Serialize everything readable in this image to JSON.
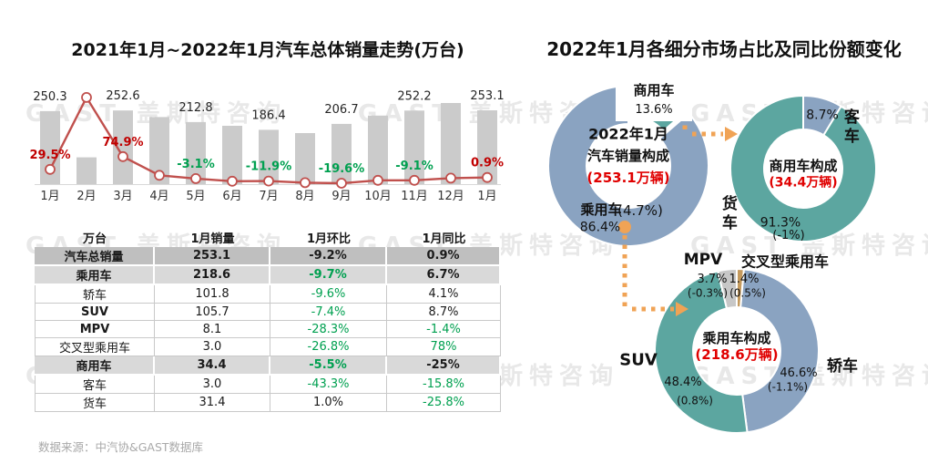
{
  "colors": {
    "bar": "#CBCBCB",
    "line": "#C0504D",
    "pct_red": "#C00000",
    "green": "#00A050",
    "black": "#1a1a1a",
    "teal": "#5CA6A0",
    "blue": "#8AA3C1",
    "tan": "#C49A5E",
    "gray": "#C7C7C7",
    "orange": "#F0A355",
    "center_red": "#E00000",
    "watermark": "#E8E8E8",
    "table_total_bg": "#BFBFBF",
    "table_group_bg": "#D9D9D9"
  },
  "watermark": {
    "text": "GAST 盖斯特咨询"
  },
  "left": {
    "title": "2021年1月~2022年1月汽车总体销量走势(万台)",
    "source": "数据来源：中汽协&GAST数据库"
  },
  "right": {
    "title": "2022年1月各细分市场占比及同比份额变化"
  },
  "chart_data": [
    {
      "id": "total-sales-trend",
      "type": "bar",
      "title": "2021年1月~2022年1月汽车总体销量走势(万台)",
      "ylabel": "万台",
      "ylim": [
        0,
        290
      ],
      "categories": [
        "1月",
        "2月",
        "3月",
        "4月",
        "5月",
        "6月",
        "7月",
        "8月",
        "9月",
        "10月",
        "11月",
        "12月",
        "1月"
      ],
      "series": [
        {
          "name": "销量(万台)",
          "type": "bar",
          "values": [
            250.3,
            92,
            252.6,
            230,
            212.8,
            200,
            186.4,
            175,
            206.7,
            235,
            252.2,
            278,
            253.1
          ],
          "labels": [
            "250.3",
            null,
            "252.6",
            null,
            "212.8",
            null,
            "186.4",
            null,
            "206.7",
            null,
            "252.2",
            null,
            "253.1"
          ]
        },
        {
          "name": "同比",
          "type": "line",
          "values": [
            29.5,
            285,
            74.9,
            8.6,
            -3.1,
            -12.4,
            -11.9,
            -17.8,
            -19.6,
            -9.4,
            -9.1,
            -1.6,
            0.9
          ],
          "labels": [
            "29.5%",
            null,
            "74.9%",
            null,
            "-3.1%",
            null,
            "-11.9%",
            null,
            "-19.6%",
            null,
            "-9.1%",
            null,
            "0.9%"
          ],
          "label_colors": [
            "red",
            null,
            "red",
            null,
            "green",
            null,
            "green",
            null,
            "green",
            null,
            "green",
            null,
            "red"
          ]
        }
      ]
    },
    {
      "id": "donut-total",
      "type": "pie",
      "title_line1": "2022年1月",
      "title_line2": "汽车销量构成",
      "center_value": "(253.1万辆)",
      "segments": [
        {
          "label": "商用车",
          "pct": 13.6,
          "share_text": "13.6%",
          "color": "teal",
          "explode": true
        },
        {
          "label": "乘用车",
          "pct": 86.4,
          "share_text": "86.4%",
          "yoy_text": "(4.7%)",
          "color": "blue"
        }
      ]
    },
    {
      "id": "donut-commercial",
      "type": "pie",
      "title": "商用车构成",
      "center_value": "(34.4万辆)",
      "segments": [
        {
          "label": "客车",
          "pct": 8.7,
          "share_text": "8.7%",
          "color": "blue"
        },
        {
          "label": "货车",
          "pct": 91.3,
          "share_text": "91.3%",
          "yoy_text": "(-1%)",
          "color": "teal"
        }
      ]
    },
    {
      "id": "donut-passenger",
      "type": "pie",
      "title": "乘用车构成",
      "center_value": "(218.6万辆)",
      "segments": [
        {
          "label": "交叉型乘用车",
          "pct": 1.4,
          "share_text": "1.4%",
          "yoy_text": "(0.5%)",
          "color": "tan"
        },
        {
          "label": "轿车",
          "pct": 46.6,
          "share_text": "46.6%",
          "yoy_text": "(-1.1%)",
          "color": "blue"
        },
        {
          "label": "SUV",
          "pct": 48.4,
          "share_text": "48.4%",
          "yoy_text": "(0.8%)",
          "color": "teal"
        },
        {
          "label": "MPV",
          "pct": 3.7,
          "share_text": "3.7%",
          "yoy_text": "(-0.3%)",
          "color": "gray"
        }
      ]
    },
    {
      "id": "segment-table",
      "type": "table",
      "headers": [
        "万台",
        "1月销量",
        "1月环比",
        "1月同比"
      ],
      "rows": [
        {
          "label": "汽车总销量",
          "sales": "253.1",
          "mom": "-9.2%",
          "yoy": "0.9%",
          "style": "total",
          "mom_color": "black",
          "yoy_color": "black"
        },
        {
          "label": "乘用车",
          "sales": "218.6",
          "mom": "-9.7%",
          "yoy": "6.7%",
          "style": "group",
          "mom_color": "green",
          "yoy_color": "black"
        },
        {
          "label": "轿车",
          "sales": "101.8",
          "mom": "-9.6%",
          "yoy": "4.1%",
          "style": "item",
          "mom_color": "green",
          "yoy_color": "black"
        },
        {
          "label": "SUV",
          "sales": "105.7",
          "mom": "-7.4%",
          "yoy": "8.7%",
          "style": "item",
          "label_bold": true,
          "mom_color": "green",
          "yoy_color": "black"
        },
        {
          "label": "MPV",
          "sales": "8.1",
          "mom": "-28.3%",
          "yoy": "-1.4%",
          "style": "item",
          "label_bold": true,
          "mom_color": "green",
          "yoy_color": "green"
        },
        {
          "label": "交叉型乘用车",
          "sales": "3.0",
          "mom": "-26.8%",
          "yoy": "78%",
          "style": "item",
          "mom_color": "green",
          "yoy_color": "green"
        },
        {
          "label": "商用车",
          "sales": "34.4",
          "mom": "-5.5%",
          "yoy": "-25%",
          "style": "group",
          "mom_color": "green",
          "yoy_color": "black"
        },
        {
          "label": "客车",
          "sales": "3.0",
          "mom": "-43.3%",
          "yoy": "-15.8%",
          "style": "item",
          "mom_color": "green",
          "yoy_color": "green"
        },
        {
          "label": "货车",
          "sales": "31.4",
          "mom": "1.0%",
          "yoy": "-25.8%",
          "style": "item",
          "mom_color": "black",
          "yoy_color": "green"
        }
      ]
    }
  ]
}
